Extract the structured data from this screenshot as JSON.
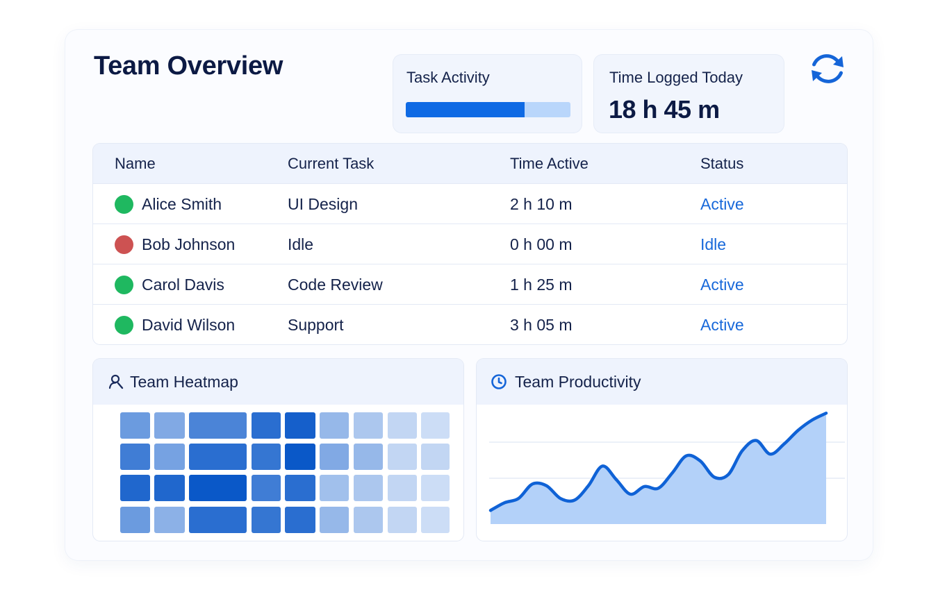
{
  "header": {
    "title": "Team Overview"
  },
  "stats": {
    "task_activity": {
      "label": "Task Activity",
      "progress": 0.72
    },
    "time_logged": {
      "label": "Time Logged Today",
      "value": "18 h 45 m"
    }
  },
  "icons": {
    "refresh": "refresh-icon",
    "heatmap": "user-search-icon",
    "productivity": "clock-icon"
  },
  "colors": {
    "accent": "#0f6ae4",
    "active_dot": "#1fb860",
    "idle_dot": "#cd5252",
    "status_text": "#1768da"
  },
  "table": {
    "columns": [
      "Name",
      "Current Task",
      "Time Active",
      "Status"
    ],
    "rows": [
      {
        "name": "Alice Smith",
        "task": "UI Design",
        "time": "2 h 10 m",
        "status": "Active",
        "state": "active"
      },
      {
        "name": "Bob Johnson",
        "task": "Idle",
        "time": "0 h 00 m",
        "status": "Idle",
        "state": "idle"
      },
      {
        "name": "Carol Davis",
        "task": "Code Review",
        "time": "1 h 25 m",
        "status": "Active",
        "state": "active"
      },
      {
        "name": "David Wilson",
        "task": "Support",
        "time": "3 h 05 m",
        "status": "Active",
        "state": "active"
      }
    ]
  },
  "heatmap": {
    "title": "Team Heatmap",
    "chart_data": {
      "type": "heatmap",
      "rows": 4,
      "columns": 9,
      "intensity": [
        [
          0.55,
          0.45,
          0.7,
          0.85,
          0.95,
          0.35,
          0.25,
          0.15,
          0.1
        ],
        [
          0.75,
          0.5,
          0.85,
          0.8,
          1.0,
          0.45,
          0.35,
          0.15,
          0.15
        ],
        [
          0.9,
          0.9,
          1.0,
          0.75,
          0.85,
          0.3,
          0.25,
          0.15,
          0.1
        ],
        [
          0.55,
          0.4,
          0.85,
          0.8,
          0.85,
          0.35,
          0.25,
          0.15,
          0.1
        ]
      ]
    }
  },
  "productivity": {
    "title": "Team Productivity",
    "chart_data": {
      "type": "area",
      "x": [
        0,
        1,
        2,
        3,
        4,
        5,
        6,
        7,
        8,
        9,
        10,
        11,
        12,
        13,
        14,
        15,
        16,
        17,
        18,
        19,
        20,
        21,
        22,
        23,
        24
      ],
      "y": [
        0.16,
        0.25,
        0.3,
        0.47,
        0.45,
        0.3,
        0.28,
        0.45,
        0.68,
        0.52,
        0.35,
        0.44,
        0.42,
        0.6,
        0.8,
        0.74,
        0.55,
        0.58,
        0.86,
        0.98,
        0.82,
        0.94,
        1.1,
        1.22,
        1.3
      ],
      "ylim": [
        0,
        1.4
      ],
      "grid": true
    }
  }
}
